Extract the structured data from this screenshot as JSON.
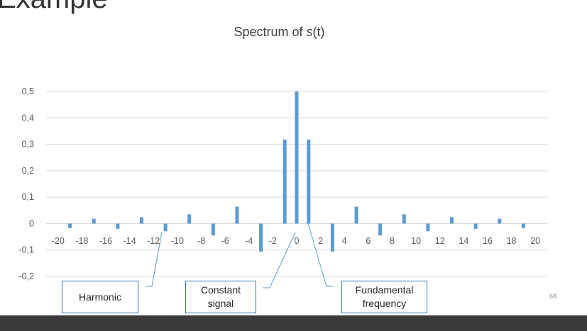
{
  "slide": {
    "title": "Example",
    "page_number": "68"
  },
  "chart_data": {
    "type": "bar",
    "title_prefix": "Spectrum of ",
    "title_var": "s",
    "title_suffix": "(t)",
    "xlabel": "",
    "ylabel": "",
    "ylim": [
      -0.2,
      0.5
    ],
    "yticks": [
      "0,5",
      "0,4",
      "0,3",
      "0,2",
      "0,1",
      "0",
      "-0,1",
      "-0,2"
    ],
    "ytick_values": [
      0.5,
      0.4,
      0.3,
      0.2,
      0.1,
      0,
      -0.1,
      -0.2
    ],
    "xticks": [
      "-20",
      "-18",
      "-16",
      "-14",
      "-12",
      "-10",
      "-8",
      "-6",
      "-4",
      "-2",
      "0",
      "2",
      "4",
      "6",
      "8",
      "10",
      "12",
      "14",
      "16",
      "18",
      "20"
    ],
    "xtick_values": [
      -20,
      -18,
      -16,
      -14,
      -12,
      -10,
      -8,
      -6,
      -4,
      -2,
      0,
      2,
      4,
      6,
      8,
      10,
      12,
      14,
      16,
      18,
      20
    ],
    "grid": true,
    "bar_color": "#5b9bd5",
    "grid_color": "#d9d9d9",
    "x": [
      -19,
      -17,
      -15,
      -13,
      -11,
      -9,
      -7,
      -5,
      -3,
      -1,
      0,
      1,
      3,
      5,
      7,
      9,
      11,
      13,
      15,
      17,
      19
    ],
    "values": [
      -0.017,
      0.018,
      -0.02,
      0.024,
      -0.029,
      0.035,
      -0.045,
      0.064,
      -0.106,
      0.318,
      0.5,
      0.318,
      -0.106,
      0.064,
      -0.045,
      0.035,
      -0.029,
      0.024,
      -0.02,
      0.018,
      -0.017
    ]
  },
  "callouts": [
    {
      "id": "harmonic",
      "text": "Harmonic"
    },
    {
      "id": "constant",
      "line1": "Constant",
      "line2": "signal"
    },
    {
      "id": "fundamental",
      "line1": "Fundamental",
      "line2": "frequency"
    }
  ],
  "colors": {
    "callout_border": "#2e75b6",
    "leader_line": "#5b9bd5",
    "footer_bar": "#3a3a3a"
  }
}
